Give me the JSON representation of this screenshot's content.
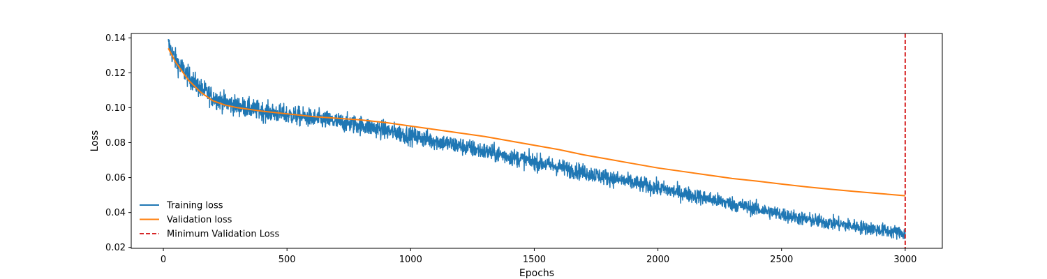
{
  "chart_data": {
    "type": "line",
    "title": "",
    "xlabel": "Epochs",
    "ylabel": "Loss",
    "xlim": [
      -130,
      3150
    ],
    "ylim": [
      0.0195,
      0.1425
    ],
    "x_ticks": [
      0,
      500,
      1000,
      1500,
      2000,
      2500,
      3000
    ],
    "x_tick_labels": [
      "0",
      "500",
      "1000",
      "1500",
      "2000",
      "2500",
      "3000"
    ],
    "y_ticks": [
      0.02,
      0.04,
      0.06,
      0.08,
      0.1,
      0.12,
      0.14
    ],
    "y_tick_labels": [
      "0.02",
      "0.04",
      "0.06",
      "0.08",
      "0.10",
      "0.12",
      "0.14"
    ],
    "grid": false,
    "legend_position": "lower-left",
    "series": [
      {
        "name": "Training loss",
        "color": "#1f77b4",
        "style": "solid",
        "x_range": [
          20,
          3000
        ],
        "trend_x": [
          20,
          50,
          100,
          150,
          200,
          250,
          300,
          400,
          500,
          600,
          700,
          800,
          900,
          1000,
          1100,
          1200,
          1300,
          1400,
          1500,
          1600,
          1700,
          1800,
          1900,
          2000,
          2100,
          2200,
          2300,
          2400,
          2500,
          2600,
          2700,
          2800,
          2900,
          3000
        ],
        "trend_y": [
          0.136,
          0.127,
          0.118,
          0.111,
          0.106,
          0.103,
          0.101,
          0.098,
          0.096,
          0.094,
          0.092,
          0.09,
          0.087,
          0.084,
          0.081,
          0.078,
          0.075,
          0.072,
          0.069,
          0.066,
          0.063,
          0.06,
          0.057,
          0.054,
          0.051,
          0.048,
          0.045,
          0.042,
          0.039,
          0.036,
          0.034,
          0.032,
          0.03,
          0.028
        ],
        "noise_amplitude": 0.004
      },
      {
        "name": "Validation loss",
        "color": "#ff7f0e",
        "style": "solid",
        "x": [
          20,
          50,
          100,
          150,
          200,
          250,
          300,
          400,
          500,
          600,
          700,
          800,
          900,
          1000,
          1100,
          1200,
          1300,
          1400,
          1500,
          1600,
          1700,
          1800,
          1900,
          2000,
          2100,
          2200,
          2300,
          2400,
          2500,
          2600,
          2700,
          2800,
          2900,
          3000
        ],
        "y": [
          0.134,
          0.126,
          0.116,
          0.109,
          0.104,
          0.1015,
          0.1,
          0.098,
          0.0965,
          0.095,
          0.094,
          0.093,
          0.0915,
          0.0895,
          0.0875,
          0.0855,
          0.0835,
          0.081,
          0.0785,
          0.076,
          0.073,
          0.0705,
          0.068,
          0.0655,
          0.0635,
          0.0615,
          0.0595,
          0.058,
          0.0563,
          0.0547,
          0.0533,
          0.052,
          0.0508,
          0.0496
        ]
      },
      {
        "name": "Minimum Validation Loss",
        "color": "#d62728",
        "style": "dashed",
        "vline_x": 3000
      }
    ]
  }
}
